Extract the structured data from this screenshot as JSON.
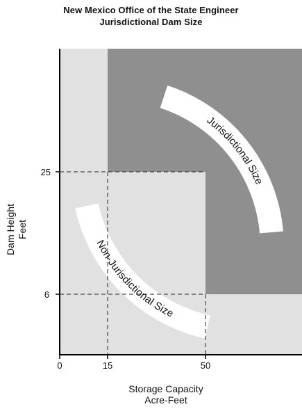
{
  "title": {
    "line1": "New Mexico Office of the State Engineer",
    "line2": "Jurisdictional Dam Size"
  },
  "axes": {
    "y_label_line1": "Dam Height",
    "y_label_line2": "Feet",
    "x_label_line1": "Storage Capacity",
    "x_label_line2": "Acre-Feet",
    "x_ticks": [
      "0",
      "15",
      "50"
    ],
    "y_ticks": [
      "25",
      "6"
    ]
  },
  "regions": {
    "jurisdictional_label": "Jurisdictional Size",
    "non_jurisdictional_label": "Non-Jurisdictional Size"
  },
  "colors": {
    "jurisdictional_fill": "#8f8f8f",
    "non_jurisdictional_fill": "#e1e1e1",
    "band_fill": "#ffffff",
    "axis": "#000000"
  }
}
